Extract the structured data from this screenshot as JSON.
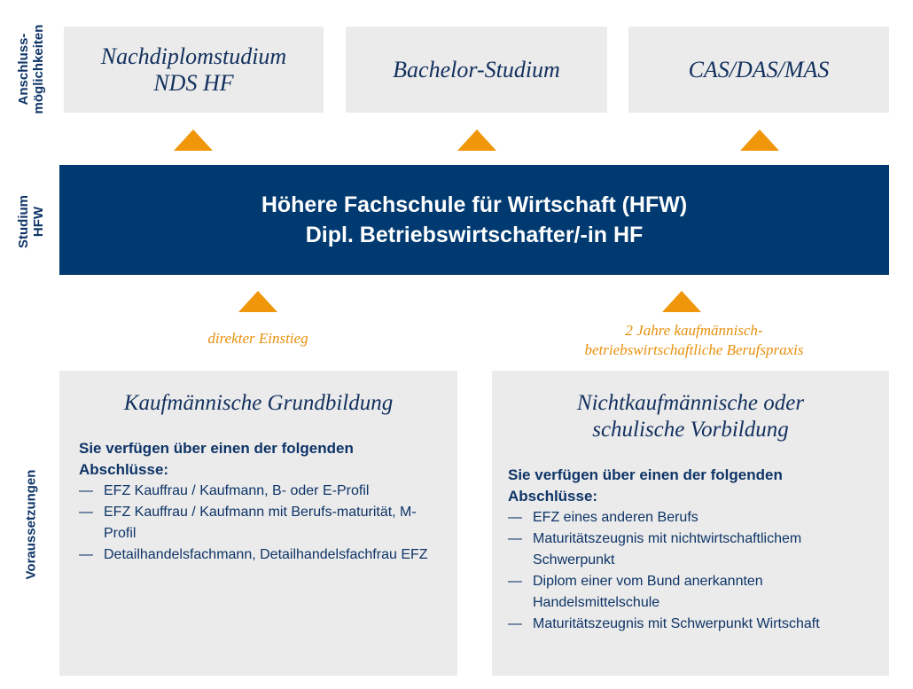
{
  "side_labels": {
    "anschluss": [
      "Anschluss-",
      "möglichkeiten"
    ],
    "studium": [
      "Studium",
      "HFW"
    ],
    "voraussetzungen": "Voraussetzungen"
  },
  "top_boxes": [
    {
      "lines": [
        "Nachdiplomstudium",
        "NDS HF"
      ]
    },
    {
      "lines": [
        "Bachelor-Studium"
      ]
    },
    {
      "lines": [
        "CAS/DAS/MAS"
      ]
    }
  ],
  "band": {
    "line1": "Höhere Fachschule für Wirtschaft (HFW)",
    "line2": "Dipl. Betriebswirtschafter/-in HF"
  },
  "entry_labels": {
    "left": "direkter Einstieg",
    "right": [
      "2 Jahre kaufmännisch-",
      "betriebswirtschaftliche Berufspraxis"
    ]
  },
  "boxes": [
    {
      "title": [
        "Kaufmännische Grundbildung"
      ],
      "intro": "Sie verfügen über einen der folgenden Abschlüsse:",
      "items": [
        "EFZ Kauffrau / Kaufmann, B- oder E-Profil",
        "EFZ Kauffrau / Kaufmann mit Berufs-maturität, M-Profil",
        "Detailhandelsfachmann, Detailhandelsfachfrau EFZ"
      ]
    },
    {
      "title": [
        "Nichtkaufmännische oder",
        "schulische Vorbildung"
      ],
      "intro": "Sie verfügen über einen der folgenden Abschlüsse:",
      "items": [
        "EFZ eines anderen Berufs",
        "Maturitätszeugnis mit nichtwirtschaftlichem Schwerpunkt",
        "Diplom einer vom Bund anerkannten Handelsmittelschule",
        "Maturitätszeugnis mit Schwerpunkt Wirtschaft"
      ]
    }
  ],
  "colors": {
    "navy": "#003a70",
    "orange": "#f0960a",
    "box": "#ebebeb"
  }
}
